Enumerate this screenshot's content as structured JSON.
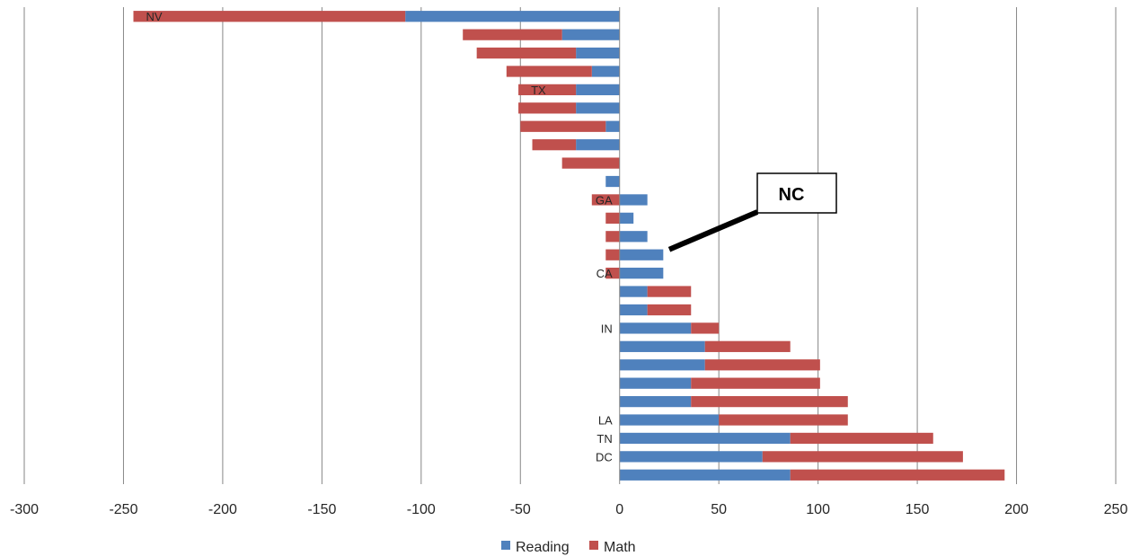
{
  "chart_data": {
    "type": "bar",
    "orientation": "horizontal",
    "stacked": true,
    "title": "",
    "xlabel": "",
    "ylabel": "",
    "xlim": [
      -300,
      250
    ],
    "x_ticks": [
      -300,
      -250,
      -200,
      -150,
      -100,
      -50,
      0,
      50,
      100,
      150,
      200,
      250
    ],
    "grid": "vertical",
    "legend_position": "bottom",
    "colors": {
      "Reading": "#4f81bd",
      "Math": "#c0504d"
    },
    "categories": [
      "NV",
      "",
      "",
      "",
      "TX",
      "",
      "",
      "",
      "",
      "",
      "GA",
      "",
      "",
      "",
      "CA",
      "",
      "",
      "IN",
      "",
      "",
      "",
      "",
      "LA",
      "TN",
      "DC",
      ""
    ],
    "series": [
      {
        "name": "Reading",
        "values": [
          -108,
          -29,
          -22,
          -14,
          -22,
          -22,
          -7,
          -22,
          0,
          -7,
          14,
          7,
          14,
          22,
          22,
          14,
          14,
          36,
          43,
          43,
          36,
          36,
          50,
          86,
          72,
          86
        ]
      },
      {
        "name": "Math",
        "values": [
          -137,
          -50,
          -50,
          -43,
          -29,
          -29,
          -43,
          -22,
          -29,
          0,
          -14,
          -7,
          -7,
          -7,
          -7,
          22,
          22,
          14,
          43,
          58,
          65,
          79,
          65,
          72,
          101,
          108
        ]
      }
    ],
    "annotation": {
      "text": "NC",
      "category_index": 13
    }
  }
}
